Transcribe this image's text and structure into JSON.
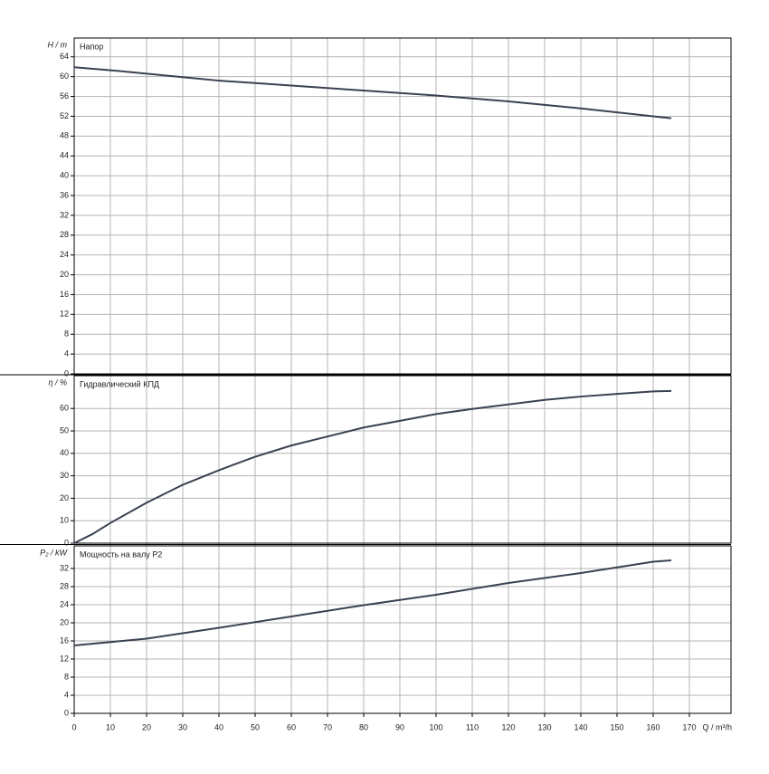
{
  "chart_data": [
    {
      "type": "line",
      "ylabel": "H / m",
      "xlim": [
        0,
        181.5
      ],
      "ylim": [
        0,
        67.8
      ],
      "yticks": [
        0,
        4,
        8,
        12,
        16,
        20,
        24,
        28,
        32,
        36,
        40,
        44,
        48,
        52,
        56,
        60,
        64
      ],
      "x": [
        0,
        10,
        20,
        30,
        40,
        50,
        60,
        70,
        80,
        90,
        100,
        110,
        120,
        130,
        140,
        150,
        160,
        165
      ],
      "series": [
        {
          "name": "Напор",
          "color": "#3a4250",
          "values": [
            61.9,
            61.3,
            60.6,
            59.9,
            59.2,
            58.7,
            58.2,
            57.7,
            57.2,
            56.7,
            56.2,
            55.6,
            55.0,
            54.3,
            53.6,
            52.8,
            52.0,
            51.6
          ]
        }
      ]
    },
    {
      "type": "line",
      "ylabel": "η / %",
      "xlim": [
        0,
        181.5
      ],
      "ylim": [
        0,
        74.6
      ],
      "yticks": [
        0,
        10,
        20,
        30,
        40,
        50,
        60
      ],
      "x": [
        0,
        5,
        10,
        20,
        30,
        40,
        50,
        60,
        70,
        80,
        90,
        100,
        110,
        120,
        130,
        140,
        150,
        160,
        165
      ],
      "series": [
        {
          "name": "Гидравлический КПД",
          "color": "#3a4250",
          "values": [
            0,
            4,
            9,
            18,
            26,
            32.5,
            38.5,
            43.5,
            47.5,
            51.5,
            54.5,
            57.5,
            59.8,
            61.8,
            63.8,
            65.3,
            66.5,
            67.6,
            67.8
          ]
        }
      ]
    },
    {
      "type": "line",
      "ylabel": "P₂ / kW",
      "xlabel": "Q / m³/h",
      "xlim": [
        0,
        181.5
      ],
      "ylim": [
        0,
        37
      ],
      "xticks": [
        0,
        10,
        20,
        30,
        40,
        50,
        60,
        70,
        80,
        90,
        100,
        110,
        120,
        130,
        140,
        150,
        160,
        170
      ],
      "yticks": [
        0,
        4,
        8,
        12,
        16,
        20,
        24,
        28,
        32
      ],
      "x": [
        0,
        20,
        40,
        60,
        80,
        100,
        120,
        140,
        160,
        165
      ],
      "series": [
        {
          "name": "Мощность на валу P2",
          "color": "#3a4250",
          "values": [
            15.0,
            16.5,
            18.9,
            21.4,
            23.9,
            26.2,
            28.8,
            31.0,
            33.5,
            33.8
          ]
        }
      ]
    }
  ]
}
